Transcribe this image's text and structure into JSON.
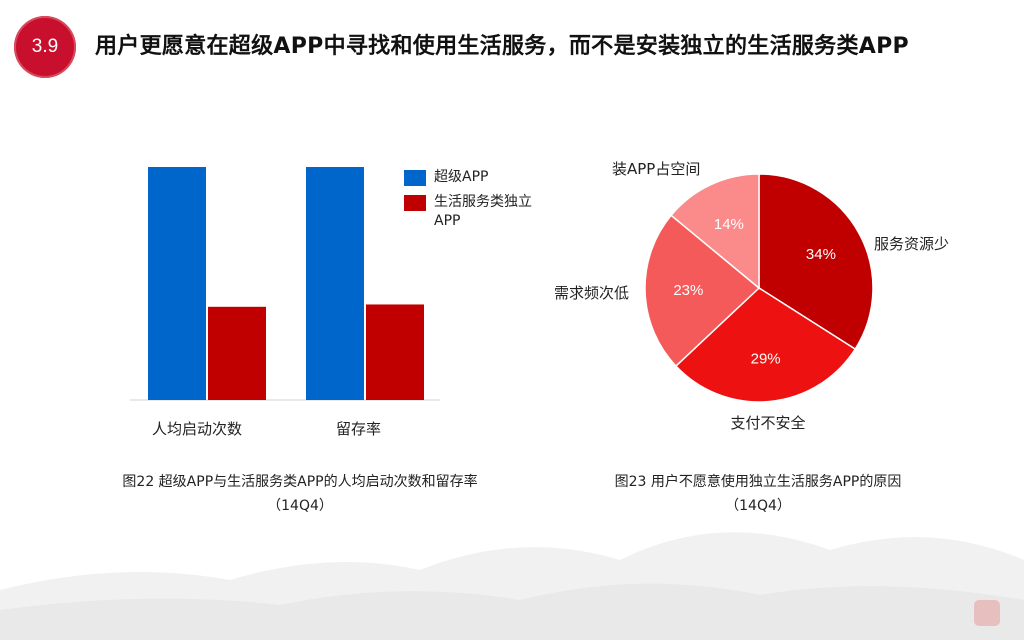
{
  "header": {
    "badge": "3.9",
    "title": "用户更愿意在超级APP中寻找和使用生活服务，而不是安装独立的生活服务类APP"
  },
  "colors": {
    "blue": "#0066cc",
    "red": "#c00000",
    "pie": [
      "#c00000",
      "#ee1111",
      "#f55a5a",
      "#fb8a8a"
    ]
  },
  "chart_data": [
    {
      "type": "bar",
      "categories": [
        "人均启动次数",
        "留存率"
      ],
      "series": [
        {
          "name": "超级APP",
          "values": [
            100,
            100
          ]
        },
        {
          "name": "生活服务类独立APP",
          "values": [
            40,
            41
          ]
        }
      ],
      "ylim": [
        0,
        100
      ],
      "legend": [
        "超级APP",
        "生活服务类独立APP"
      ],
      "legend_placement": "right",
      "caption_line1": "图22 超级APP与生活服务类APP的人均启动次数和留存率",
      "caption_line2": "（14Q4）"
    },
    {
      "type": "pie",
      "slices": [
        {
          "label": "服务资源少",
          "value": 34,
          "value_label": "34%"
        },
        {
          "label": "支付不安全",
          "value": 29,
          "value_label": "29%"
        },
        {
          "label": "需求频次低",
          "value": 23,
          "value_label": "23%"
        },
        {
          "label": "装APP占空间",
          "value": 14,
          "value_label": "14%"
        }
      ],
      "caption_line1": "图23 用户不愿意使用独立生活服务APP的原因",
      "caption_line2": "（14Q4）"
    }
  ]
}
